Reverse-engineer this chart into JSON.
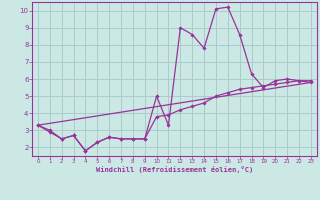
{
  "title": "",
  "xlabel": "Windchill (Refroidissement éolien,°C)",
  "ylabel": "",
  "bg_color": "#cce8e5",
  "grid_color": "#aacccc",
  "line_color": "#993399",
  "xlim": [
    -0.5,
    23.5
  ],
  "ylim": [
    1.5,
    10.5
  ],
  "xticks": [
    0,
    1,
    2,
    3,
    4,
    5,
    6,
    7,
    8,
    9,
    10,
    11,
    12,
    13,
    14,
    15,
    16,
    17,
    18,
    19,
    20,
    21,
    22,
    23
  ],
  "yticks": [
    2,
    3,
    4,
    5,
    6,
    7,
    8,
    9,
    10
  ],
  "line1_x": [
    0,
    1,
    2,
    3,
    4,
    5,
    6,
    7,
    8,
    9,
    10,
    11,
    12,
    13,
    14,
    15,
    16,
    17,
    18,
    19,
    20,
    21,
    22,
    23
  ],
  "line1_y": [
    3.3,
    3.0,
    2.5,
    2.7,
    1.8,
    2.3,
    2.6,
    2.5,
    2.5,
    2.5,
    5.0,
    3.3,
    9.0,
    8.6,
    7.8,
    10.1,
    10.2,
    8.6,
    6.3,
    5.5,
    5.9,
    6.0,
    5.9,
    5.8
  ],
  "line2_x": [
    0,
    1,
    2,
    3,
    4,
    5,
    6,
    7,
    8,
    9,
    10,
    11,
    12,
    13,
    14,
    15,
    16,
    17,
    18,
    19,
    20,
    21,
    22,
    23
  ],
  "line2_y": [
    3.3,
    2.9,
    2.5,
    2.7,
    1.8,
    2.3,
    2.6,
    2.5,
    2.5,
    2.5,
    3.8,
    3.9,
    4.2,
    4.4,
    4.6,
    5.0,
    5.2,
    5.4,
    5.5,
    5.6,
    5.7,
    5.8,
    5.9,
    5.9
  ],
  "line3_x": [
    0,
    23
  ],
  "line3_y": [
    3.3,
    5.8
  ]
}
